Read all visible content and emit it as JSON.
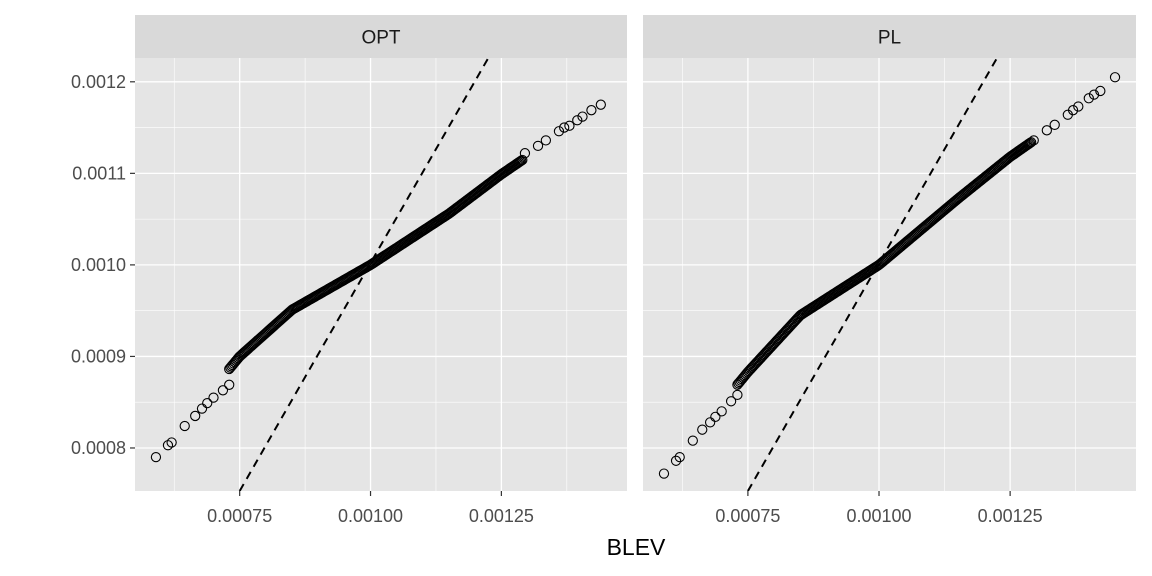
{
  "chart_data": {
    "type": "scatter",
    "title": "",
    "xlabel": "BLEV",
    "ylabel": "",
    "xlim": [
      0.00055,
      0.00149
    ],
    "ylim": [
      0.000753,
      0.001226
    ],
    "x_ticks": [
      0.00075,
      0.001,
      0.00125
    ],
    "x_tick_labels": [
      "0.00075",
      "0.00100",
      "0.00125"
    ],
    "y_ticks": [
      0.0008,
      0.0009,
      0.001,
      0.0011,
      0.0012
    ],
    "y_tick_labels": [
      "0.0008",
      "0.0009",
      "0.0010",
      "0.0011",
      "0.0012"
    ],
    "grid": true,
    "reference_line": {
      "style": "dashed",
      "color": "#000000",
      "points": [
        [
          0.00075,
          0.000753
        ],
        [
          0.001225,
          0.001226
        ]
      ]
    },
    "panels": [
      {
        "label": "OPT",
        "curve": [
          [
            0.00059,
            0.00079
          ],
          [
            0.00075,
            0.0009
          ],
          [
            0.00085,
            0.000951
          ],
          [
            0.001,
            0.001
          ],
          [
            0.00115,
            0.001056
          ],
          [
            0.00125,
            0.001099
          ],
          [
            0.00135,
            0.001138
          ],
          [
            0.00144,
            0.001175
          ]
        ],
        "sparse_points": [
          [
            0.00059,
            0.00079
          ],
          [
            0.000613,
            0.000803
          ],
          [
            0.00062,
            0.000806
          ],
          [
            0.000645,
            0.000824
          ],
          [
            0.000665,
            0.000835
          ],
          [
            0.000678,
            0.000843
          ],
          [
            0.000688,
            0.000849
          ],
          [
            0.0007,
            0.000855
          ],
          [
            0.000718,
            0.000863
          ],
          [
            0.00073,
            0.000869
          ],
          [
            0.001295,
            0.001122
          ],
          [
            0.00132,
            0.00113
          ],
          [
            0.001335,
            0.001136
          ],
          [
            0.00136,
            0.001146
          ],
          [
            0.00137,
            0.00115
          ],
          [
            0.00138,
            0.001152
          ],
          [
            0.001395,
            0.001158
          ],
          [
            0.001405,
            0.001162
          ],
          [
            0.001422,
            0.001169
          ],
          [
            0.00144,
            0.001175
          ]
        ],
        "dense_range": [
          0.00073,
          0.00129
        ]
      },
      {
        "label": "PL",
        "curve": [
          [
            0.00059,
            0.000772
          ],
          [
            0.00075,
            0.000883
          ],
          [
            0.00085,
            0.000945
          ],
          [
            0.001,
            0.001
          ],
          [
            0.00115,
            0.001072
          ],
          [
            0.00125,
            0.001118
          ],
          [
            0.00135,
            0.001158
          ],
          [
            0.00145,
            0.001205
          ]
        ],
        "sparse_points": [
          [
            0.00059,
            0.000772
          ],
          [
            0.000613,
            0.000786
          ],
          [
            0.00062,
            0.00079
          ],
          [
            0.000645,
            0.000808
          ],
          [
            0.000663,
            0.00082
          ],
          [
            0.000678,
            0.000828
          ],
          [
            0.000688,
            0.000834
          ],
          [
            0.0007,
            0.00084
          ],
          [
            0.000718,
            0.000851
          ],
          [
            0.00073,
            0.000858
          ],
          [
            0.001295,
            0.001136
          ],
          [
            0.00132,
            0.001147
          ],
          [
            0.001335,
            0.001153
          ],
          [
            0.00136,
            0.001164
          ],
          [
            0.00137,
            0.001169
          ],
          [
            0.00138,
            0.001173
          ],
          [
            0.0014,
            0.001182
          ],
          [
            0.00141,
            0.001186
          ],
          [
            0.001422,
            0.00119
          ],
          [
            0.00145,
            0.001205
          ]
        ],
        "dense_range": [
          0.00073,
          0.00129
        ]
      }
    ]
  },
  "colors": {
    "panel_bg": "#e5e5e5",
    "grid_major": "#ffffff",
    "strip_bg": "#d9d9d9",
    "points": "#000000"
  }
}
